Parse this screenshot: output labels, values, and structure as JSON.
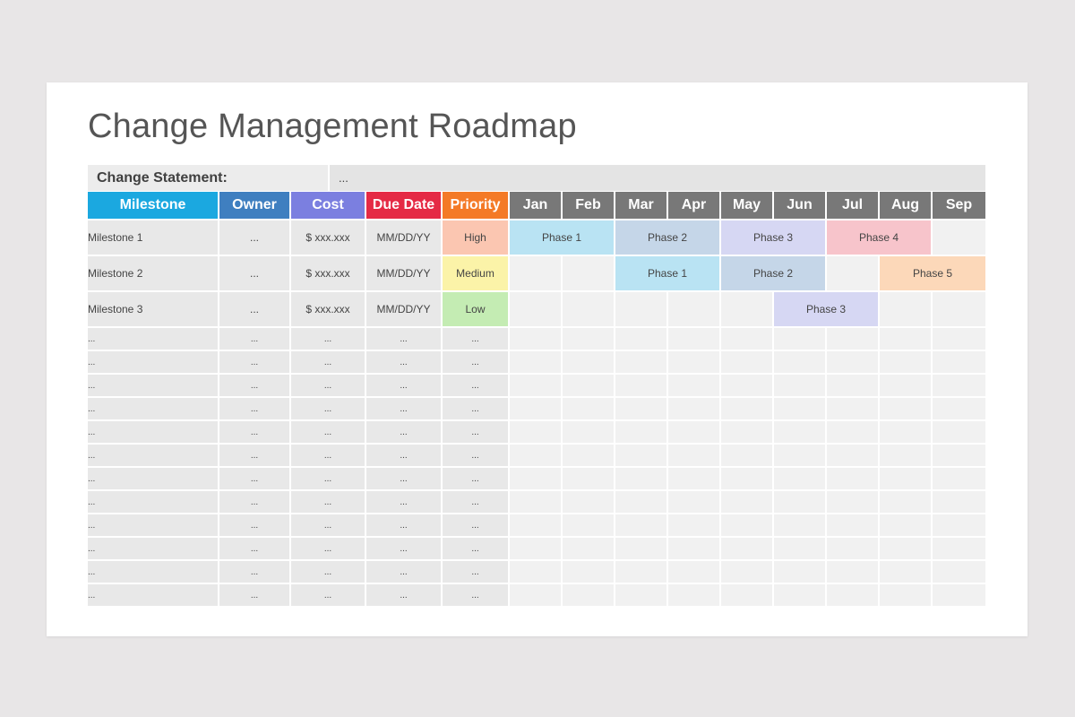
{
  "title": "Change Management Roadmap",
  "statement": {
    "label": "Change Statement:",
    "value": "..."
  },
  "headers": {
    "milestone": "Milestone",
    "owner": "Owner",
    "cost": "Cost",
    "due_date": "Due Date",
    "priority": "Priority",
    "months": [
      "Jan",
      "Feb",
      "Mar",
      "Apr",
      "May",
      "Jun",
      "Jul",
      "Aug",
      "Sep"
    ]
  },
  "header_colors": {
    "milestone": "#1ba8e0",
    "owner": "#3f7fc0",
    "cost": "#7b7fe0",
    "due_date": "#e52a45",
    "priority": "#f47a27",
    "months": "#787878"
  },
  "milestones": [
    {
      "name": "Milestone 1",
      "owner": "...",
      "cost": "$ xxx.xxx",
      "due": "MM/DD/YY",
      "priority": "High",
      "priority_color": "#fbc6b1",
      "phases": [
        {
          "label": "Phase 1",
          "start": "Jan",
          "end": "Feb",
          "color": "#b9e3f3"
        },
        {
          "label": "Phase 2",
          "start": "Mar",
          "end": "Apr",
          "color": "#c5d6e8"
        },
        {
          "label": "Phase 3",
          "start": "May",
          "end": "Jun",
          "color": "#d6d7f3"
        },
        {
          "label": "Phase 4",
          "start": "Jul",
          "end": "Aug",
          "color": "#f7c4cb"
        }
      ]
    },
    {
      "name": "Milestone 2",
      "owner": "...",
      "cost": "$ xxx.xxx",
      "due": "MM/DD/YY",
      "priority": "Medium",
      "priority_color": "#fbf3a8",
      "phases": [
        {
          "label": "Phase 1",
          "start": "Mar",
          "end": "Apr",
          "color": "#b9e3f3"
        },
        {
          "label": "Phase 2",
          "start": "May",
          "end": "Jun",
          "color": "#c5d6e8"
        },
        {
          "label": "Phase 5",
          "start": "Aug",
          "end": "Sep",
          "color": "#fcd8b9"
        }
      ]
    },
    {
      "name": "Milestone 3",
      "owner": "...",
      "cost": "$ xxx.xxx",
      "due": "MM/DD/YY",
      "priority": "Low",
      "priority_color": "#c4ecb3",
      "phases": [
        {
          "label": "Phase 3",
          "start": "Jun",
          "end": "Jul",
          "color": "#d6d7f3"
        }
      ]
    }
  ],
  "placeholder_row": [
    "...",
    "...",
    "...",
    "...",
    "..."
  ],
  "placeholder_row_count": 12
}
